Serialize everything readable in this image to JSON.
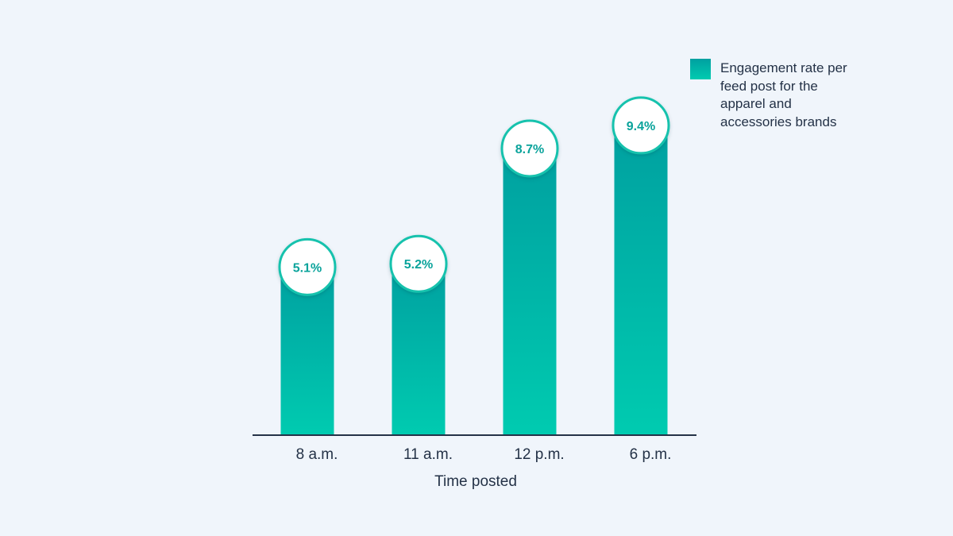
{
  "colors": {
    "background": "#f0f5fb",
    "bar_top": "#00a0a0",
    "bar_bottom": "#00cbb0",
    "label_text": "#0aa39b",
    "circle_border": "#19c2ad",
    "text": "#243247",
    "axis": "#243247"
  },
  "legend": {
    "label": "Engagement rate per feed post for the apparel and accessories brands"
  },
  "chart_data": {
    "type": "bar",
    "categories": [
      "8 a.m.",
      "11 a.m.",
      "12 p.m.",
      "6 p.m."
    ],
    "series": [
      {
        "name": "Engagement rate per feed post for the apparel and accessories brands",
        "values": [
          5.1,
          5.2,
          8.7,
          9.4
        ]
      }
    ],
    "data_labels": [
      "5.1%",
      "5.2%",
      "8.7%",
      "9.4%"
    ],
    "xlabel": "Time posted",
    "ylabel": "",
    "ylim": [
      0,
      12
    ],
    "grid": false,
    "legend_position": "top-right"
  }
}
